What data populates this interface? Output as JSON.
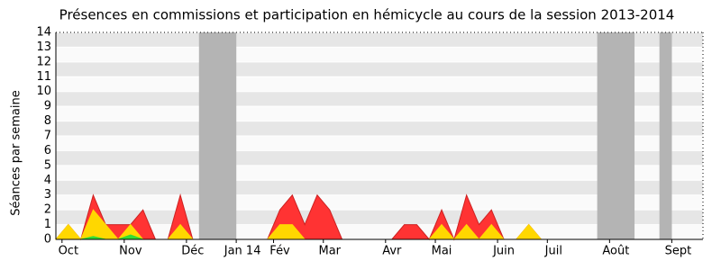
{
  "chart_data": {
    "type": "area",
    "title": "Présences en commissions et participation en hémicycle au cours de la session 2013-2014",
    "y_label": "Séances par semaine",
    "categories": [
      null,
      "Oct",
      null,
      null,
      null,
      null,
      "Nov",
      null,
      null,
      null,
      null,
      "Déc",
      null,
      null,
      null,
      "Jan 14",
      null,
      null,
      "Fév",
      null,
      null,
      null,
      "Mar",
      null,
      null,
      null,
      null,
      "Avr",
      null,
      null,
      null,
      "Mai",
      null,
      null,
      null,
      null,
      "Juin",
      null,
      null,
      null,
      "Juil",
      null,
      null,
      null,
      null,
      "Août",
      null,
      null,
      null,
      null,
      "Sept",
      null,
      null
    ],
    "series": [
      {
        "color": "#ff3333",
        "values": [
          0,
          1,
          0,
          3,
          1,
          1,
          1,
          2,
          0,
          0,
          3,
          0,
          0,
          0,
          0,
          0,
          0,
          0,
          2,
          3,
          1,
          3,
          2,
          0,
          0,
          0,
          0,
          0,
          1,
          1,
          0,
          2,
          0,
          3,
          1,
          2,
          0,
          0,
          1,
          0,
          0,
          0,
          0,
          0,
          0,
          0,
          0,
          0,
          0,
          0,
          0,
          0,
          0
        ]
      },
      {
        "color": "#ffd700",
        "values": [
          0,
          1,
          0,
          2,
          1,
          0,
          1,
          0,
          0,
          0,
          1,
          0,
          0,
          0,
          0,
          0,
          0,
          0,
          1,
          1,
          0,
          0,
          0,
          0,
          0,
          0,
          0,
          0,
          0,
          0,
          0,
          1,
          0,
          1,
          0,
          1,
          0,
          0,
          1,
          0,
          0,
          0,
          0,
          0,
          0,
          0,
          0,
          0,
          0,
          0,
          0,
          0,
          0
        ]
      },
      {
        "color": "#33dd33",
        "values": [
          0,
          0,
          0,
          0.2,
          0,
          0,
          0.3,
          0,
          0,
          0,
          0,
          0,
          0,
          0,
          0,
          0,
          0,
          0,
          0,
          0,
          0,
          0,
          0,
          0,
          0,
          0,
          0,
          0,
          0,
          0,
          0,
          0,
          0,
          0,
          0,
          0,
          0,
          0,
          0,
          0,
          0,
          0,
          0,
          0,
          0,
          0,
          0,
          0,
          0,
          0,
          0,
          0,
          0
        ]
      }
    ],
    "vacations": [
      [
        11.5,
        14.5
      ],
      [
        43.5,
        46.5
      ],
      [
        48.5,
        49.5
      ]
    ],
    "ylim": [
      0,
      14
    ],
    "yticks": [
      0,
      1,
      2,
      3,
      4,
      5,
      6,
      7,
      8,
      9,
      10,
      11,
      12,
      13,
      14
    ]
  }
}
